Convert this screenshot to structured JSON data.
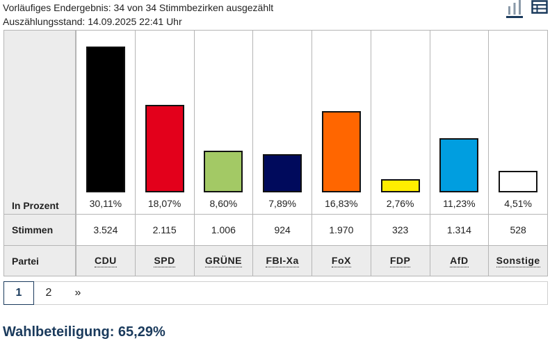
{
  "header": {
    "status_line": "Vorläufiges Endergebnis: 34 von 34 Stimmbezirken ausgezählt",
    "timestamp_line": "Auszählungsstand: 14.09.2025 22:41 Uhr"
  },
  "view_icons": {
    "chart_icon": "bar-chart-icon",
    "table_icon": "table-icon"
  },
  "table": {
    "row_labels": {
      "percent": "In Prozent",
      "votes": "Stimmen",
      "party": "Partei"
    }
  },
  "chart_data": {
    "type": "bar",
    "categories": [
      "CDU",
      "SPD",
      "GRÜNE",
      "FBI-Xa",
      "FoX",
      "FDP",
      "AfD",
      "Sonstige"
    ],
    "values": [
      30.11,
      18.07,
      8.6,
      7.89,
      16.83,
      2.76,
      11.23,
      4.51
    ],
    "value_labels": [
      "30,11%",
      "18,07%",
      "8,60%",
      "7,89%",
      "16,83%",
      "2,76%",
      "11,23%",
      "4,51%"
    ],
    "votes": [
      "3.524",
      "2.115",
      "1.006",
      "924",
      "1.970",
      "323",
      "1.314",
      "528"
    ],
    "colors": [
      "#000000",
      "#e3001b",
      "#a3c965",
      "#000a5c",
      "#ff6600",
      "#ffed00",
      "#009ee0",
      "#ffffff"
    ],
    "ylim": [
      0,
      30.11
    ],
    "grid": false
  },
  "pager": {
    "pages": [
      "1",
      "2"
    ],
    "current": "1",
    "next_label": "»"
  },
  "turnout": {
    "text": "Wahlbeteiligung: 65,29%"
  }
}
